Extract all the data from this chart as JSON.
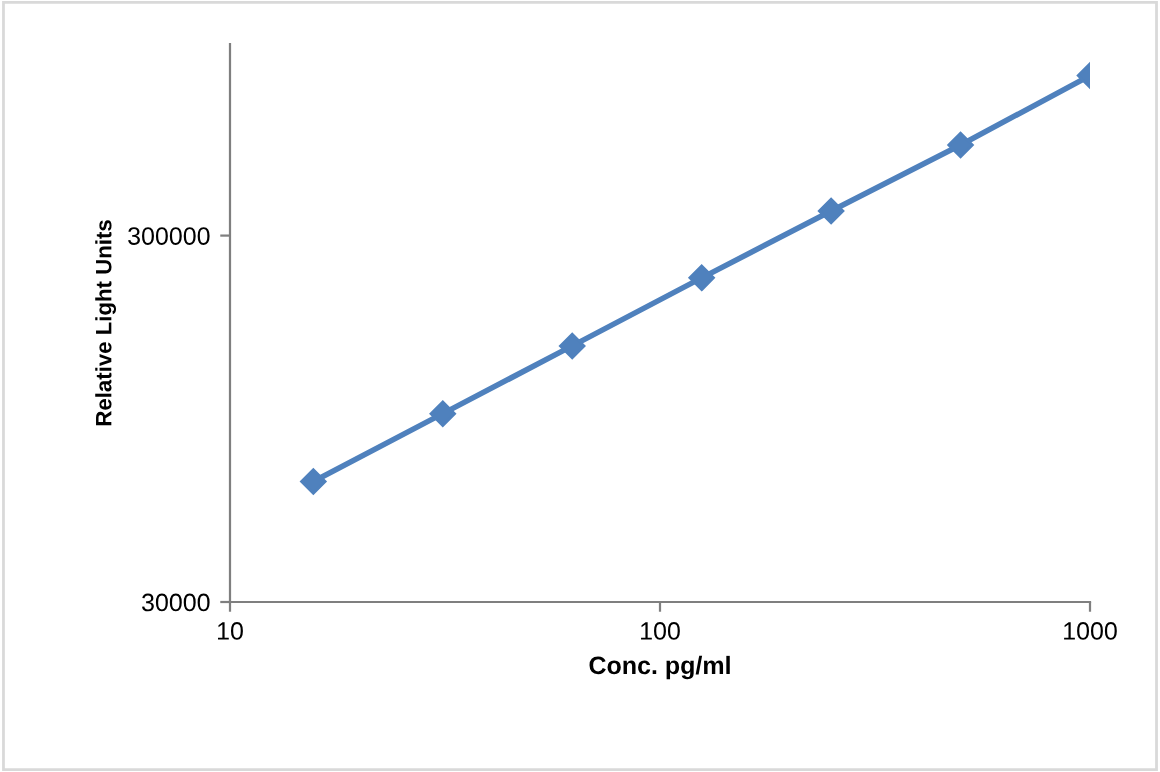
{
  "chart_data": {
    "type": "line",
    "xlabel": "Conc. pg/ml",
    "ylabel": "Relative Light Units",
    "log": "xy",
    "x": [
      15.625,
      31.25,
      62.5,
      125,
      250,
      500,
      1000
    ],
    "series": [
      {
        "color": "#4f81bd",
        "values": [
          64000,
          98000,
          150000,
          230000,
          350000,
          530000,
          820000
        ]
      }
    ],
    "xlim": [
      10,
      1000
    ],
    "ylim": [
      30000,
      1000000
    ],
    "xticks": [
      10,
      100,
      1000
    ],
    "yticks": [
      30000,
      300000
    ],
    "marker": "diamond",
    "line_style": "solid",
    "grid": false,
    "legend": false
  }
}
